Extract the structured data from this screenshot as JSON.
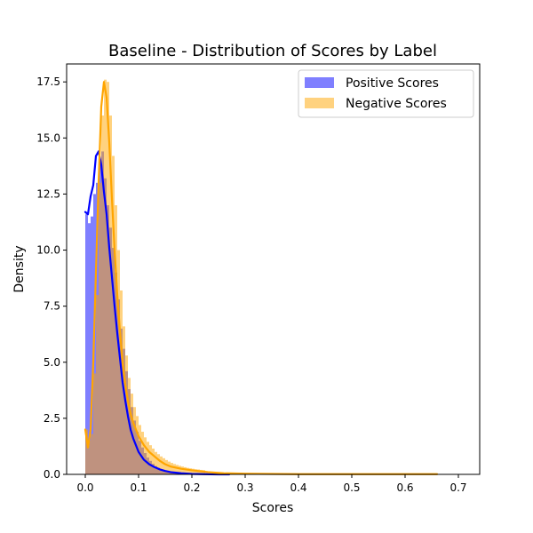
{
  "chart_data": {
    "type": "histogram",
    "title": "Baseline - Distribution of Scores by Label",
    "xlabel": "Scores",
    "ylabel": "Density",
    "xlim": [
      -0.035,
      0.74
    ],
    "ylim": [
      0,
      18.3
    ],
    "xticks": [
      0.0,
      0.1,
      0.2,
      0.3,
      0.4,
      0.5,
      0.6,
      0.7
    ],
    "xtick_labels": [
      "0.0",
      "0.1",
      "0.2",
      "0.3",
      "0.4",
      "0.5",
      "0.6",
      "0.7"
    ],
    "yticks": [
      0.0,
      2.5,
      5.0,
      7.5,
      10.0,
      12.5,
      15.0,
      17.5
    ],
    "ytick_labels": [
      "0.0",
      "2.5",
      "5.0",
      "7.5",
      "10.0",
      "12.5",
      "15.0",
      "17.5"
    ],
    "grid": false,
    "legend_position": "top-right",
    "series": [
      {
        "name": "Positive Scores",
        "color": "#0000ff",
        "fill_opacity": 0.5,
        "bin_start": 0.0,
        "bin_width": 0.005,
        "values": [
          11.6,
          11.2,
          11.5,
          12.5,
          13.0,
          14.0,
          14.4,
          13.2,
          12.0,
          11.0,
          10.1,
          9.0,
          7.8,
          6.5,
          5.6,
          4.6,
          3.8,
          3.0,
          2.4,
          1.9,
          1.5,
          1.2,
          0.95,
          0.75,
          0.6,
          0.47,
          0.37,
          0.29,
          0.23,
          0.18,
          0.14,
          0.11,
          0.09,
          0.07,
          0.06,
          0.05,
          0.04,
          0.03,
          0.02,
          0.02,
          0.01,
          0.01,
          0.01,
          0.01,
          0.0
        ],
        "kde_x": [
          0.0,
          0.005,
          0.01,
          0.015,
          0.02,
          0.025,
          0.03,
          0.035,
          0.04,
          0.045,
          0.05,
          0.055,
          0.06,
          0.065,
          0.07,
          0.075,
          0.08,
          0.085,
          0.09,
          0.1,
          0.11,
          0.12,
          0.13,
          0.14,
          0.15,
          0.16,
          0.18,
          0.2,
          0.22,
          0.25,
          0.27
        ],
        "kde_y": [
          11.7,
          11.6,
          12.4,
          12.9,
          14.2,
          14.4,
          13.8,
          12.6,
          11.6,
          10.1,
          8.8,
          7.5,
          6.3,
          5.2,
          4.1,
          3.3,
          2.6,
          2.0,
          1.6,
          1.0,
          0.65,
          0.45,
          0.32,
          0.22,
          0.15,
          0.1,
          0.05,
          0.02,
          0.01,
          0.0,
          0.0
        ]
      },
      {
        "name": "Negative Scores",
        "color": "#ffa500",
        "fill_opacity": 0.5,
        "bin_start": 0.0,
        "bin_width": 0.005,
        "values": [
          2.0,
          1.5,
          1.8,
          4.5,
          8.0,
          13.0,
          16.0,
          17.6,
          17.5,
          16.0,
          14.2,
          12.0,
          10.0,
          8.2,
          6.6,
          5.3,
          4.3,
          3.6,
          3.0,
          2.6,
          2.2,
          1.9,
          1.65,
          1.45,
          1.3,
          1.15,
          1.0,
          0.9,
          0.8,
          0.72,
          0.64,
          0.57,
          0.51,
          0.46,
          0.42,
          0.38,
          0.35,
          0.32,
          0.29,
          0.27,
          0.25,
          0.23,
          0.22,
          0.2,
          0.19
        ],
        "kde_x": [
          0.0,
          0.005,
          0.01,
          0.015,
          0.02,
          0.025,
          0.03,
          0.035,
          0.04,
          0.045,
          0.05,
          0.055,
          0.06,
          0.065,
          0.07,
          0.075,
          0.08,
          0.085,
          0.09,
          0.1,
          0.11,
          0.12,
          0.13,
          0.14,
          0.15,
          0.16,
          0.18,
          0.2,
          0.23,
          0.26,
          0.3,
          0.35,
          0.4,
          0.5,
          0.6,
          0.66
        ],
        "kde_y": [
          2.0,
          1.2,
          2.0,
          5.0,
          9.0,
          13.0,
          16.4,
          17.5,
          16.8,
          14.8,
          12.3,
          10.0,
          8.0,
          6.4,
          5.0,
          4.0,
          3.3,
          2.7,
          2.3,
          1.7,
          1.3,
          1.0,
          0.8,
          0.6,
          0.45,
          0.35,
          0.25,
          0.18,
          0.1,
          0.05,
          0.03,
          0.02,
          0.01,
          0.01,
          0.01,
          0.01
        ]
      }
    ]
  }
}
